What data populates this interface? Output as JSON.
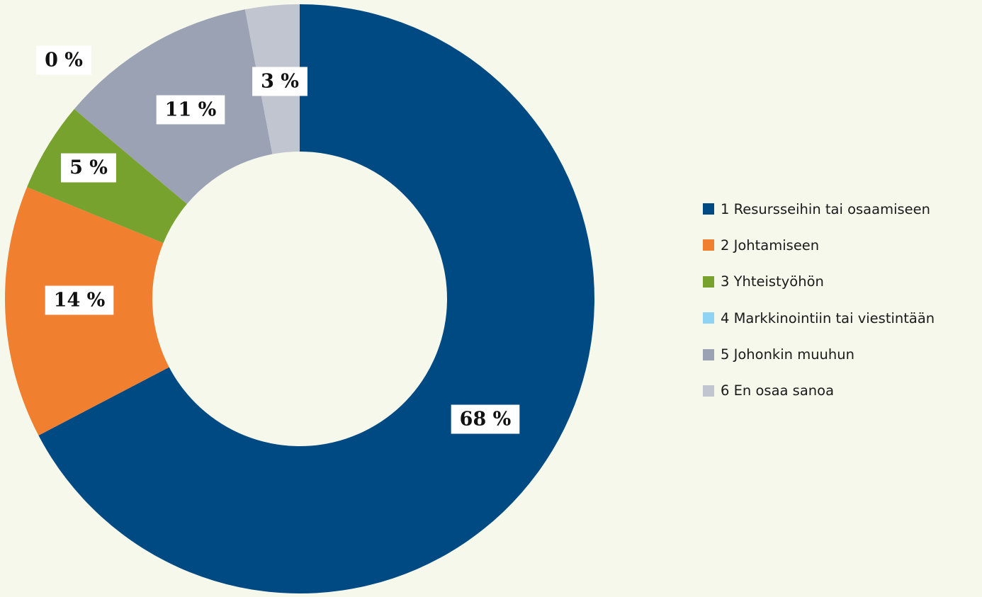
{
  "chart_data": {
    "type": "pie",
    "donut": true,
    "legend_position": "right",
    "series": [
      {
        "name": "1 Resursseihin tai osaamiseen",
        "value": 68,
        "label": "68 %",
        "color": "#004a83"
      },
      {
        "name": "2 Johtamiseen",
        "value": 14,
        "label": "14 %",
        "color": "#f07f30"
      },
      {
        "name": "3 Yhteistyöhön",
        "value": 5,
        "label": "5 %",
        "color": "#77a22e"
      },
      {
        "name": "4 Markkinointiin tai viestintään",
        "value": 0,
        "label": "0 %",
        "color": "#8fd3f4"
      },
      {
        "name": "5 Johonkin muuhun",
        "value": 11,
        "label": "11 %",
        "color": "#9aa2b3"
      },
      {
        "name": "6 En osaa sanoa",
        "value": 3,
        "label": "3 %",
        "color": "#c0c5cf"
      }
    ]
  }
}
